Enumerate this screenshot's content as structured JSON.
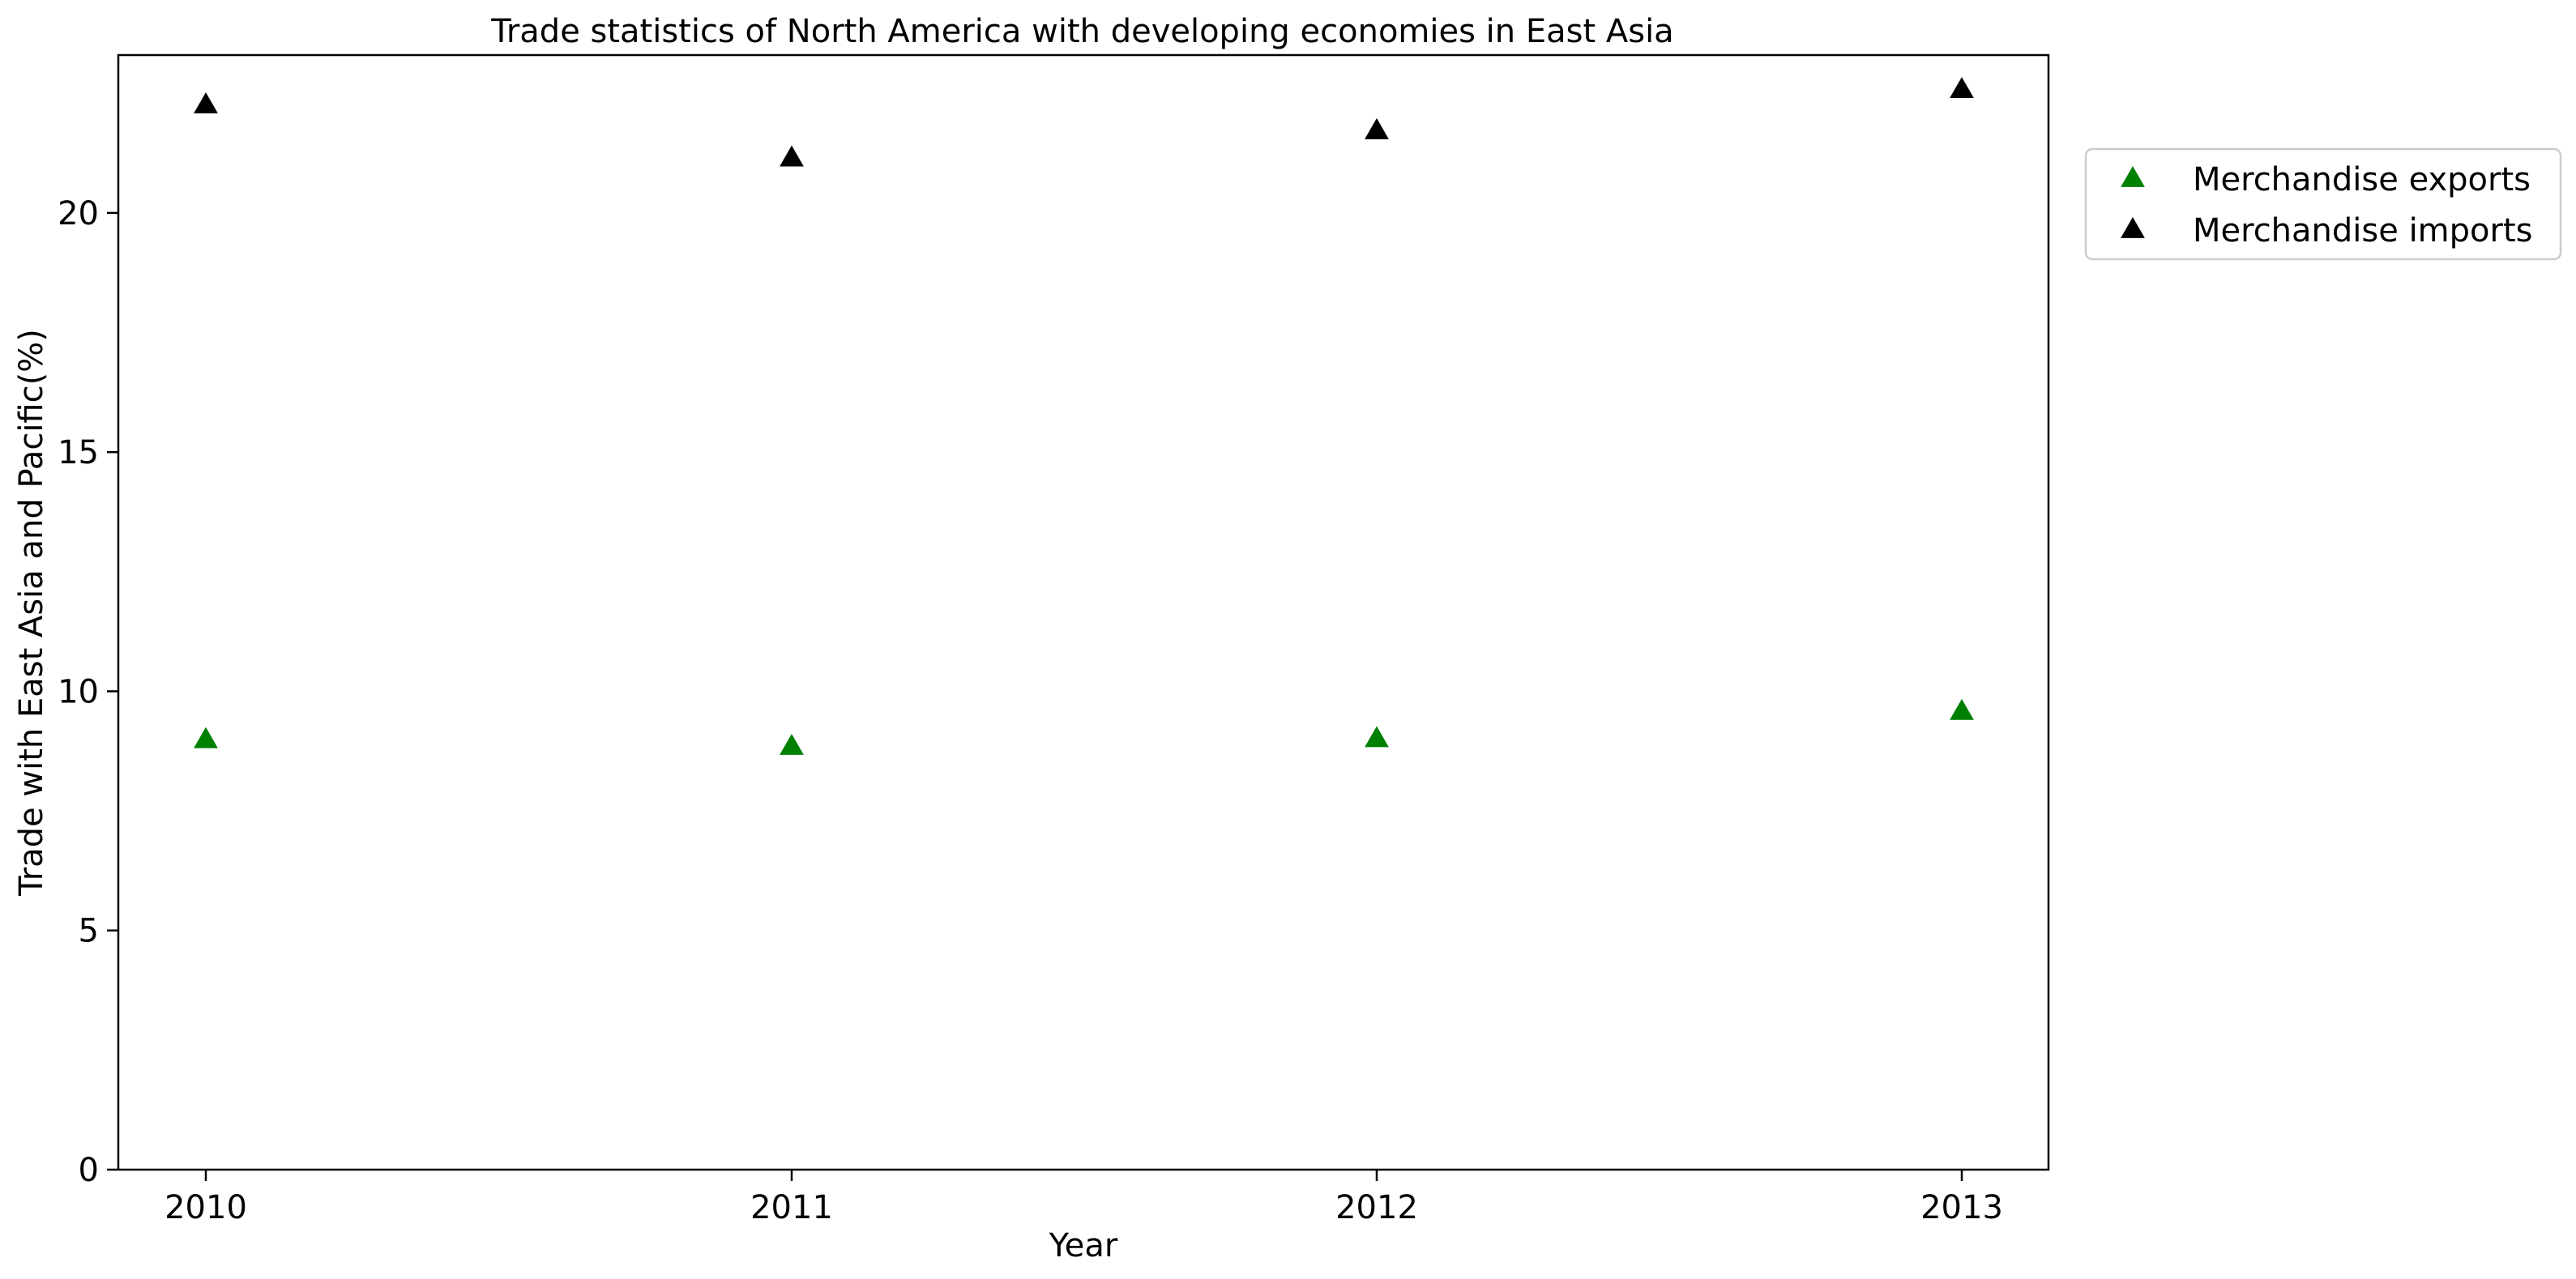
{
  "chart_data": {
    "type": "scatter",
    "title": "Trade statistics of North America with developing economies in East Asia",
    "xlabel": "Year",
    "ylabel": "Trade with East Asia and Pacific(%)",
    "categories": [
      "2010",
      "2011",
      "2012",
      "2013"
    ],
    "ylim": [
      0,
      23.3
    ],
    "yticks": [
      0,
      5,
      10,
      15,
      20
    ],
    "grid": false,
    "legend_position": "outside right, top",
    "marker": "triangle",
    "series": [
      {
        "name": "Merchandise exports",
        "color": "#008000",
        "values": [
          8.98,
          8.84,
          9.0,
          9.57
        ]
      },
      {
        "name": "Merchandise imports",
        "color": "#000000",
        "values": [
          22.25,
          21.14,
          21.71,
          22.57
        ]
      }
    ]
  }
}
